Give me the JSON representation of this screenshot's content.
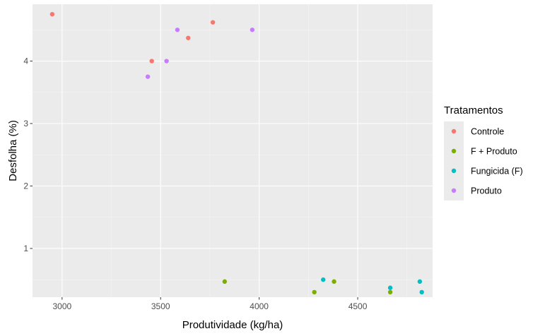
{
  "chart_data": {
    "type": "scatter",
    "title": "",
    "xlabel": "Produtividade (kg/ha)",
    "ylabel": "Desfolha (%)",
    "xlim": [
      2850,
      4880
    ],
    "ylim": [
      0.22,
      4.91
    ],
    "x_ticks": [
      3000,
      3500,
      4000,
      4500
    ],
    "y_ticks": [
      1,
      2,
      3,
      4
    ],
    "grid": true,
    "legend": {
      "title": "Tratamentos",
      "position": "right"
    },
    "series": [
      {
        "name": "Controle",
        "color": "#F8766D",
        "points": [
          {
            "x": 2950,
            "y": 4.75
          },
          {
            "x": 3455,
            "y": 4.0
          },
          {
            "x": 3640,
            "y": 4.37
          },
          {
            "x": 3765,
            "y": 4.62
          }
        ]
      },
      {
        "name": "F + Produto",
        "color": "#7CAE00",
        "points": [
          {
            "x": 3825,
            "y": 0.47
          },
          {
            "x": 4280,
            "y": 0.3
          },
          {
            "x": 4380,
            "y": 0.47
          },
          {
            "x": 4665,
            "y": 0.3
          }
        ]
      },
      {
        "name": "Fungicida (F)",
        "color": "#00BFC4",
        "points": [
          {
            "x": 4325,
            "y": 0.5
          },
          {
            "x": 4665,
            "y": 0.37
          },
          {
            "x": 4815,
            "y": 0.47
          },
          {
            "x": 4825,
            "y": 0.3
          }
        ]
      },
      {
        "name": "Produto",
        "color": "#C77CFF",
        "points": [
          {
            "x": 3435,
            "y": 3.75
          },
          {
            "x": 3530,
            "y": 4.0
          },
          {
            "x": 3585,
            "y": 4.5
          },
          {
            "x": 3965,
            "y": 4.5
          }
        ]
      }
    ]
  }
}
